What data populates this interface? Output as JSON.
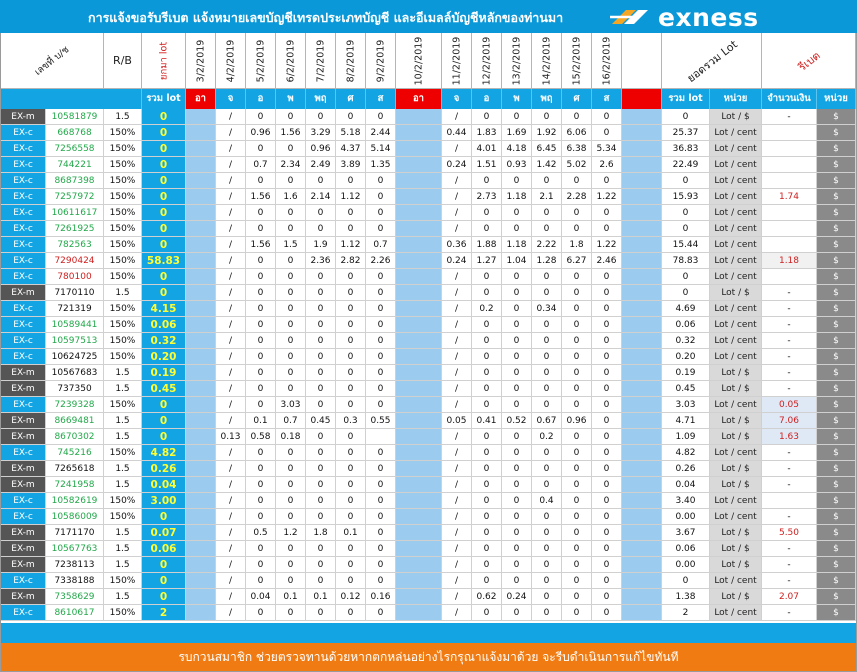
{
  "header": {
    "title": "การแจ้งขอรับรีเบต  แจ้งหมายเลขบัญชีเทรดประเภทบัญชี  และอีเมลล์บัญชีหลักของท่านมา",
    "brand": "exness"
  },
  "columns": {
    "account": "เลขที่ บ/ช",
    "rb": "R/B",
    "carry": "ยกมา lot",
    "week1_dates": [
      "3/2/2019",
      "4/2/2019",
      "5/2/2019",
      "6/2/2019",
      "7/2/2019",
      "8/2/2019",
      "9/2/2019"
    ],
    "week2_dates": [
      "10/2/2019",
      "11/2/2019",
      "12/2/2019",
      "13/2/2019",
      "14/2/2019",
      "15/2/2019",
      "16/2/2019"
    ],
    "total_lot": "ยอดรวม Lot",
    "rebate": "รีเบต"
  },
  "subheader": {
    "sum_lot": "รวม lot",
    "sun": "อา",
    "days": [
      "จ",
      "อ",
      "พ",
      "พฤ",
      "ศ",
      "ส"
    ],
    "sum_lot2": "รวม lot",
    "unit": "หน่วย",
    "amount": "จำนวนเงิน",
    "unit2": "หน่วย"
  },
  "rows": [
    {
      "type": "EX-m",
      "acct": "10581879",
      "ac": "g",
      "rb": "1.5",
      "carry": "0",
      "w1": [
        "",
        "/",
        "0",
        "0",
        "0",
        "0",
        "0"
      ],
      "w2": [
        "",
        "/",
        "0",
        "0",
        "0",
        "0",
        "0"
      ],
      "total": "0",
      "unit": "Lot / $",
      "amt": "-",
      "cur": "$"
    },
    {
      "type": "EX-c",
      "acct": "668768",
      "ac": "g",
      "rb": "150%",
      "carry": "0",
      "w1": [
        "",
        "/",
        "0.96",
        "1.56",
        "3.29",
        "5.18",
        "2.44"
      ],
      "w2": [
        "",
        "0.44",
        "1.83",
        "1.69",
        "1.92",
        "6.06",
        "0"
      ],
      "total": "25.37",
      "unit": "Lot / cent",
      "amt": "",
      "cur": "$"
    },
    {
      "type": "EX-c",
      "acct": "7256558",
      "ac": "g",
      "rb": "150%",
      "carry": "0",
      "w1": [
        "",
        "/",
        "0",
        "0",
        "0.96",
        "4.37",
        "5.14"
      ],
      "w2": [
        "",
        "/",
        "4.01",
        "4.18",
        "6.45",
        "6.38",
        "5.34"
      ],
      "total": "36.83",
      "unit": "Lot / cent",
      "amt": "",
      "cur": "$"
    },
    {
      "type": "EX-c",
      "acct": "744221",
      "ac": "g",
      "rb": "150%",
      "carry": "0",
      "w1": [
        "",
        "/",
        "0.7",
        "2.34",
        "2.49",
        "3.89",
        "1.35"
      ],
      "w2": [
        "",
        "0.24",
        "1.51",
        "0.93",
        "1.42",
        "5.02",
        "2.6"
      ],
      "total": "22.49",
      "unit": "Lot / cent",
      "amt": "",
      "cur": "$"
    },
    {
      "type": "EX-c",
      "acct": "8687398",
      "ac": "g",
      "rb": "150%",
      "carry": "0",
      "w1": [
        "",
        "/",
        "0",
        "0",
        "0",
        "0",
        "0"
      ],
      "w2": [
        "",
        "/",
        "0",
        "0",
        "0",
        "0",
        "0"
      ],
      "total": "0",
      "unit": "Lot / cent",
      "amt": "",
      "cur": "$"
    },
    {
      "type": "EX-c",
      "acct": "7257972",
      "ac": "g",
      "rb": "150%",
      "carry": "0",
      "w1": [
        "",
        "/",
        "1.56",
        "1.6",
        "2.14",
        "1.12",
        "0"
      ],
      "w2": [
        "",
        "/",
        "2.73",
        "1.18",
        "2.1",
        "2.28",
        "1.22"
      ],
      "total": "15.93",
      "unit": "Lot / cent",
      "amt": "1.74",
      "cur": "$"
    },
    {
      "type": "EX-c",
      "acct": "10611617",
      "ac": "g",
      "rb": "150%",
      "carry": "0",
      "w1": [
        "",
        "/",
        "0",
        "0",
        "0",
        "0",
        "0"
      ],
      "w2": [
        "",
        "/",
        "0",
        "0",
        "0",
        "0",
        "0"
      ],
      "total": "0",
      "unit": "Lot / cent",
      "amt": "",
      "cur": "$"
    },
    {
      "type": "EX-c",
      "acct": "7261925",
      "ac": "g",
      "rb": "150%",
      "carry": "0",
      "w1": [
        "",
        "/",
        "0",
        "0",
        "0",
        "0",
        "0"
      ],
      "w2": [
        "",
        "/",
        "0",
        "0",
        "0",
        "0",
        "0"
      ],
      "total": "0",
      "unit": "Lot / cent",
      "amt": "",
      "cur": "$"
    },
    {
      "type": "EX-c",
      "acct": "782563",
      "ac": "g",
      "rb": "150%",
      "carry": "0",
      "w1": [
        "",
        "/",
        "1.56",
        "1.5",
        "1.9",
        "1.12",
        "0.7"
      ],
      "w2": [
        "",
        "0.36",
        "1.88",
        "1.18",
        "2.22",
        "1.8",
        "1.22"
      ],
      "total": "15.44",
      "unit": "Lot / cent",
      "amt": "",
      "cur": "$"
    },
    {
      "type": "EX-c",
      "acct": "7290424",
      "ac": "r",
      "rb": "150%",
      "carry": "58.83",
      "w1": [
        "",
        "/",
        "0",
        "0",
        "2.36",
        "2.82",
        "2.26"
      ],
      "w2": [
        "",
        "0.24",
        "1.27",
        "1.04",
        "1.28",
        "6.27",
        "2.46"
      ],
      "total": "78.83",
      "unit": "Lot / cent",
      "amt": "1.18",
      "cur": "$"
    },
    {
      "type": "EX-c",
      "acct": "780100",
      "ac": "r",
      "rb": "150%",
      "carry": "0",
      "w1": [
        "",
        "/",
        "0",
        "0",
        "0",
        "0",
        "0"
      ],
      "w2": [
        "",
        "/",
        "0",
        "0",
        "0",
        "0",
        "0"
      ],
      "total": "0",
      "unit": "Lot / cent",
      "amt": "",
      "cur": "$"
    },
    {
      "type": "EX-m",
      "acct": "7170110",
      "ac": "b",
      "rb": "1.5",
      "carry": "0",
      "w1": [
        "",
        "/",
        "0",
        "0",
        "0",
        "0",
        "0"
      ],
      "w2": [
        "",
        "/",
        "0",
        "0",
        "0",
        "0",
        "0"
      ],
      "total": "0",
      "unit": "Lot / $",
      "amt": "-",
      "cur": "$"
    },
    {
      "type": "EX-c",
      "acct": "721319",
      "ac": "b",
      "rb": "150%",
      "carry": "4.15",
      "w1": [
        "",
        "/",
        "0",
        "0",
        "0",
        "0",
        "0"
      ],
      "w2": [
        "",
        "/",
        "0.2",
        "0",
        "0.34",
        "0",
        "0"
      ],
      "total": "4.69",
      "unit": "Lot / cent",
      "amt": "-",
      "cur": "$"
    },
    {
      "type": "EX-c",
      "acct": "10589441",
      "ac": "g",
      "rb": "150%",
      "carry": "0.06",
      "w1": [
        "",
        "/",
        "0",
        "0",
        "0",
        "0",
        "0"
      ],
      "w2": [
        "",
        "/",
        "0",
        "0",
        "0",
        "0",
        "0"
      ],
      "total": "0.06",
      "unit": "Lot / cent",
      "amt": "-",
      "cur": "$"
    },
    {
      "type": "EX-c",
      "acct": "10597513",
      "ac": "g",
      "rb": "150%",
      "carry": "0.32",
      "w1": [
        "",
        "/",
        "0",
        "0",
        "0",
        "0",
        "0"
      ],
      "w2": [
        "",
        "/",
        "0",
        "0",
        "0",
        "0",
        "0"
      ],
      "total": "0.32",
      "unit": "Lot / cent",
      "amt": "-",
      "cur": "$"
    },
    {
      "type": "EX-c",
      "acct": "10624725",
      "ac": "b",
      "rb": "150%",
      "carry": "0.20",
      "w1": [
        "",
        "/",
        "0",
        "0",
        "0",
        "0",
        "0"
      ],
      "w2": [
        "",
        "/",
        "0",
        "0",
        "0",
        "0",
        "0"
      ],
      "total": "0.20",
      "unit": "Lot / cent",
      "amt": "-",
      "cur": "$"
    },
    {
      "type": "EX-m",
      "acct": "10567683",
      "ac": "b",
      "rb": "1.5",
      "carry": "0.19",
      "w1": [
        "",
        "/",
        "0",
        "0",
        "0",
        "0",
        "0"
      ],
      "w2": [
        "",
        "/",
        "0",
        "0",
        "0",
        "0",
        "0"
      ],
      "total": "0.19",
      "unit": "Lot / $",
      "amt": "-",
      "cur": "$"
    },
    {
      "type": "EX-m",
      "acct": "737350",
      "ac": "b",
      "rb": "1.5",
      "carry": "0.45",
      "w1": [
        "",
        "/",
        "0",
        "0",
        "0",
        "0",
        "0"
      ],
      "w2": [
        "",
        "/",
        "0",
        "0",
        "0",
        "0",
        "0"
      ],
      "total": "0.45",
      "unit": "Lot / $",
      "amt": "-",
      "cur": "$"
    },
    {
      "type": "EX-c",
      "acct": "7239328",
      "ac": "g",
      "rb": "150%",
      "carry": "0",
      "w1": [
        "",
        "/",
        "0",
        "3.03",
        "0",
        "0",
        "0"
      ],
      "w2": [
        "",
        "/",
        "0",
        "0",
        "0",
        "0",
        "0"
      ],
      "total": "3.03",
      "unit": "Lot / cent",
      "amt": "0.05",
      "cur": "$"
    },
    {
      "type": "EX-m",
      "acct": "8669481",
      "ac": "g",
      "rb": "1.5",
      "carry": "0",
      "w1": [
        "",
        "/",
        "0.1",
        "0.7",
        "0.45",
        "0.3",
        "0.55"
      ],
      "w2": [
        "",
        "0.05",
        "0.41",
        "0.52",
        "0.67",
        "0.96",
        "0"
      ],
      "total": "4.71",
      "unit": "Lot / $",
      "amt": "7.06",
      "cur": "$"
    },
    {
      "type": "EX-m",
      "acct": "8670302",
      "ac": "g",
      "rb": "1.5",
      "carry": "0",
      "w1": [
        "",
        "0.13",
        "0.58",
        "0.18",
        "0",
        "0",
        ""
      ],
      "w2": [
        "",
        "/",
        "0",
        "0",
        "0.2",
        "0",
        "0"
      ],
      "total": "1.09",
      "unit": "Lot / $",
      "amt": "1.63",
      "cur": "$"
    },
    {
      "type": "EX-c",
      "acct": "745216",
      "ac": "g",
      "rb": "150%",
      "carry": "4.82",
      "w1": [
        "",
        "/",
        "0",
        "0",
        "0",
        "0",
        "0"
      ],
      "w2": [
        "",
        "/",
        "0",
        "0",
        "0",
        "0",
        "0"
      ],
      "total": "4.82",
      "unit": "Lot / cent",
      "amt": "-",
      "cur": "$"
    },
    {
      "type": "EX-m",
      "acct": "7265618",
      "ac": "b",
      "rb": "1.5",
      "carry": "0.26",
      "w1": [
        "",
        "/",
        "0",
        "0",
        "0",
        "0",
        "0"
      ],
      "w2": [
        "",
        "/",
        "0",
        "0",
        "0",
        "0",
        "0"
      ],
      "total": "0.26",
      "unit": "Lot / $",
      "amt": "-",
      "cur": "$"
    },
    {
      "type": "EX-m",
      "acct": "7241958",
      "ac": "g",
      "rb": "1.5",
      "carry": "0.04",
      "w1": [
        "",
        "/",
        "0",
        "0",
        "0",
        "0",
        "0"
      ],
      "w2": [
        "",
        "/",
        "0",
        "0",
        "0",
        "0",
        "0"
      ],
      "total": "0.04",
      "unit": "Lot / $",
      "amt": "-",
      "cur": "$"
    },
    {
      "type": "EX-c",
      "acct": "10582619",
      "ac": "g",
      "rb": "150%",
      "carry": "3.00",
      "w1": [
        "",
        "/",
        "0",
        "0",
        "0",
        "0",
        "0"
      ],
      "w2": [
        "",
        "/",
        "0",
        "0",
        "0.4",
        "0",
        "0"
      ],
      "total": "3.40",
      "unit": "Lot / cent",
      "amt": "",
      "cur": "$"
    },
    {
      "type": "EX-c",
      "acct": "10586009",
      "ac": "g",
      "rb": "150%",
      "carry": "0",
      "w1": [
        "",
        "/",
        "0",
        "0",
        "0",
        "0",
        "0"
      ],
      "w2": [
        "",
        "/",
        "0",
        "0",
        "0",
        "0",
        "0"
      ],
      "total": "0.00",
      "unit": "Lot / cent",
      "amt": "-",
      "cur": "$"
    },
    {
      "type": "EX-m",
      "acct": "7171170",
      "ac": "b",
      "rb": "1.5",
      "carry": "0.07",
      "w1": [
        "",
        "/",
        "0.5",
        "1.2",
        "1.8",
        "0.1",
        "0"
      ],
      "w2": [
        "",
        "/",
        "0",
        "0",
        "0",
        "0",
        "0"
      ],
      "total": "3.67",
      "unit": "Lot / $",
      "amt": "5.50",
      "cur": "$"
    },
    {
      "type": "EX-m",
      "acct": "10567763",
      "ac": "g",
      "rb": "1.5",
      "carry": "0.06",
      "w1": [
        "",
        "/",
        "0",
        "0",
        "0",
        "0",
        "0"
      ],
      "w2": [
        "",
        "/",
        "0",
        "0",
        "0",
        "0",
        "0"
      ],
      "total": "0.06",
      "unit": "Lot / $",
      "amt": "-",
      "cur": "$"
    },
    {
      "type": "EX-m",
      "acct": "7238113",
      "ac": "b",
      "rb": "1.5",
      "carry": "0",
      "w1": [
        "",
        "/",
        "0",
        "0",
        "0",
        "0",
        "0"
      ],
      "w2": [
        "",
        "/",
        "0",
        "0",
        "0",
        "0",
        "0"
      ],
      "total": "0.00",
      "unit": "Lot / $",
      "amt": "-",
      "cur": "$"
    },
    {
      "type": "EX-c",
      "acct": "7338188",
      "ac": "b",
      "rb": "150%",
      "carry": "0",
      "w1": [
        "",
        "/",
        "0",
        "0",
        "0",
        "0",
        "0"
      ],
      "w2": [
        "",
        "/",
        "0",
        "0",
        "0",
        "0",
        "0"
      ],
      "total": "0",
      "unit": "Lot / cent",
      "amt": "-",
      "cur": "$"
    },
    {
      "type": "EX-m",
      "acct": "7358629",
      "ac": "g",
      "rb": "1.5",
      "carry": "0",
      "w1": [
        "",
        "/",
        "0.04",
        "0.1",
        "0.1",
        "0.12",
        "0.16"
      ],
      "w2": [
        "",
        "/",
        "0.62",
        "0.24",
        "0",
        "0",
        "0"
      ],
      "total": "1.38",
      "unit": "Lot / $",
      "amt": "2.07",
      "cur": "$"
    },
    {
      "type": "EX-c",
      "acct": "8610617",
      "ac": "g",
      "rb": "150%",
      "carry": "2",
      "w1": [
        "",
        "/",
        "0",
        "0",
        "0",
        "0",
        "0"
      ],
      "w2": [
        "",
        "/",
        "0",
        "0",
        "0",
        "0",
        "0"
      ],
      "total": "2",
      "unit": "Lot / cent",
      "amt": "-",
      "cur": "$"
    }
  ],
  "footer": "รบกวนสมาชิก ช่วยตรวจทานด้วยหากตกหล่นอย่างไรกรุณาแจ้งมาด้วย  จะรีบดำเนินการแก้ไขทันที"
}
